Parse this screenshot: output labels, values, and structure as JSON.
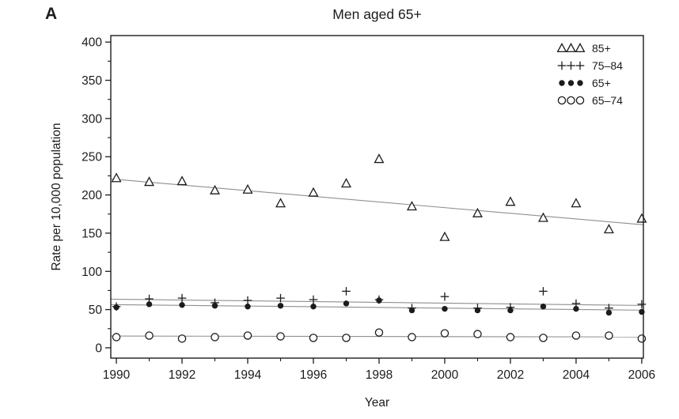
{
  "panel_label": "A",
  "title": "Men aged 65+",
  "axes": {
    "xlabel": "Year",
    "ylabel": "Rate per 10,000 population"
  },
  "chart_data": {
    "type": "scatter",
    "title": "Men aged 65+",
    "xlabel": "Year",
    "ylabel": "Rate per 10,000 population",
    "xlim": [
      1989.83,
      2006.05
    ],
    "ylim": [
      -13.5,
      408.5
    ],
    "grid": false,
    "legend_position": "top-right",
    "x_major_ticks": [
      1990,
      1992,
      1994,
      1996,
      1998,
      2000,
      2002,
      2004,
      2006
    ],
    "x_minor_ticks": [
      1991,
      1993,
      1995,
      1997,
      1999,
      2001,
      2003,
      2005
    ],
    "y_major_ticks": [
      0,
      50,
      100,
      150,
      200,
      250,
      300,
      350,
      400
    ],
    "y_minor_ticks": [
      25,
      75,
      125,
      175,
      225,
      275,
      325,
      375
    ],
    "x": [
      1990,
      1991,
      1992,
      1993,
      1994,
      1995,
      1996,
      1997,
      1998,
      1999,
      2000,
      2001,
      2002,
      2003,
      2004,
      2005,
      2006
    ],
    "series": [
      {
        "name": "85+",
        "marker": "open-triangle",
        "values": [
          222,
          217,
          218,
          206,
          207,
          189,
          203,
          215,
          247,
          185,
          145,
          176,
          191,
          170,
          189,
          155,
          169
        ],
        "trend_line": {
          "x": [
            1989.83,
            2006.05
          ],
          "y": [
            221,
            161
          ]
        }
      },
      {
        "name": "75–84",
        "marker": "plus",
        "values": [
          54,
          64,
          65,
          59,
          62,
          65,
          63,
          74,
          63,
          52,
          67,
          52,
          53,
          74,
          58,
          52,
          57
        ],
        "trend_line": {
          "x": [
            1989.83,
            2006.05
          ],
          "y": [
            63.6,
            55.4
          ]
        }
      },
      {
        "name": "65+",
        "marker": "filled-circle",
        "values": [
          53,
          57,
          56,
          55,
          54,
          55,
          54,
          58,
          62,
          49,
          51,
          49,
          49,
          54,
          51,
          46,
          47
        ],
        "trend_line": {
          "x": [
            1989.83,
            2006.05
          ],
          "y": [
            56.5,
            49.2
          ]
        }
      },
      {
        "name": "65–74",
        "marker": "open-circle",
        "values": [
          14,
          16,
          12,
          14,
          16,
          15,
          13,
          13,
          20,
          14,
          19,
          18,
          14,
          13,
          16,
          16,
          12
        ],
        "trend_line": {
          "x": [
            1989.83,
            2006.05
          ],
          "y": [
            15.4,
            14.2
          ]
        }
      }
    ]
  },
  "colors": {
    "background": "#ffffff",
    "text": "#1c1c1c",
    "frame": "#1c1c1c",
    "marker": "#1c1c1c",
    "trend_line": "#8f8f8f"
  }
}
